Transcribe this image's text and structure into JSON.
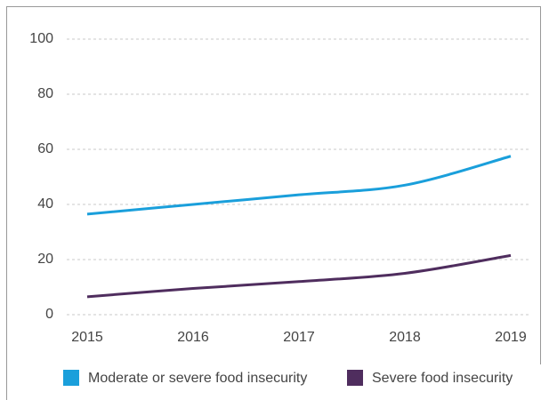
{
  "chart_data": {
    "type": "line",
    "categories": [
      "2015",
      "2016",
      "2017",
      "2018",
      "2019"
    ],
    "series": [
      {
        "name": "Moderate or severe food insecurity",
        "color": "#1a9fdb",
        "values": [
          36.5,
          40,
          43.5,
          47,
          57.5
        ]
      },
      {
        "name": "Severe food insecurity",
        "color": "#4f2d5e",
        "values": [
          6.5,
          9.5,
          12,
          15,
          21.5
        ]
      }
    ],
    "ylim": [
      0,
      100
    ],
    "yticks": [
      0,
      20,
      40,
      60,
      80,
      100
    ],
    "grid": true
  }
}
